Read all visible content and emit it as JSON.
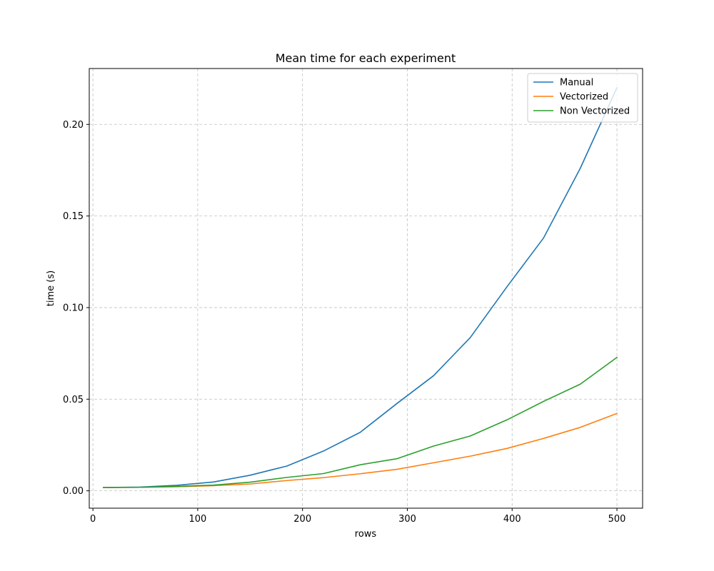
{
  "chart_data": {
    "type": "line",
    "title": "Mean time for each experiment",
    "xlabel": "rows",
    "ylabel": "time (s)",
    "xlim": [
      -3.5,
      524.5
    ],
    "ylim": [
      -0.0095,
      0.2305
    ],
    "xticks": [
      0,
      100,
      200,
      300,
      400,
      500
    ],
    "yticks": [
      0.0,
      0.05,
      0.1,
      0.15,
      0.2
    ],
    "xtick_labels": [
      "0",
      "100",
      "200",
      "300",
      "400",
      "500"
    ],
    "ytick_labels": [
      "0.00",
      "0.05",
      "0.10",
      "0.15",
      "0.20"
    ],
    "grid": true,
    "legend_position": "top-right",
    "x": [
      10,
      45,
      80,
      115,
      150,
      185,
      220,
      255,
      290,
      325,
      360,
      395,
      430,
      465,
      500
    ],
    "series": [
      {
        "name": "Manual",
        "color": "#1f77b4",
        "values": [
          0.0018,
          0.002,
          0.003,
          0.0048,
          0.0085,
          0.0135,
          0.0217,
          0.0319,
          0.0476,
          0.0628,
          0.0836,
          0.1113,
          0.138,
          0.176,
          0.22
        ]
      },
      {
        "name": "Vectorized",
        "color": "#ff7f0e",
        "values": [
          0.0017,
          0.0019,
          0.0022,
          0.0028,
          0.0037,
          0.0056,
          0.0072,
          0.0093,
          0.0117,
          0.0153,
          0.0189,
          0.0231,
          0.0286,
          0.0346,
          0.0422
        ]
      },
      {
        "name": "Non Vectorized",
        "color": "#2ca02c",
        "values": [
          0.0018,
          0.0019,
          0.0024,
          0.0031,
          0.0047,
          0.0073,
          0.0094,
          0.0142,
          0.0175,
          0.0244,
          0.0299,
          0.0387,
          0.0488,
          0.0582,
          0.0728
        ]
      }
    ]
  }
}
